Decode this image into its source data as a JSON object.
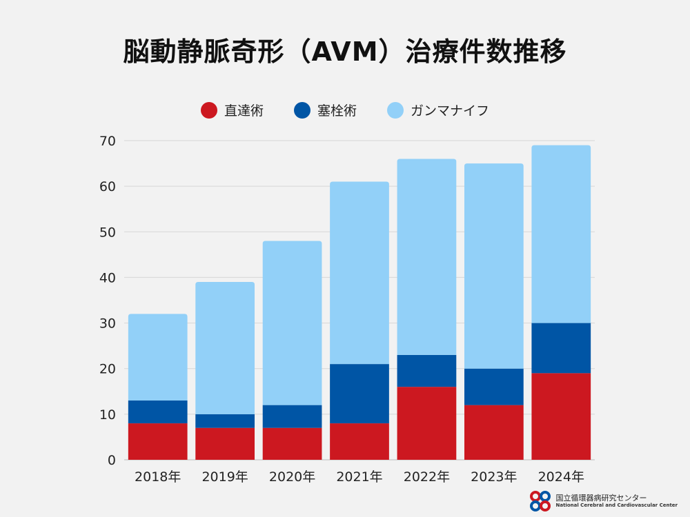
{
  "chart_data": {
    "type": "bar",
    "stacked": true,
    "title": "脳動静脈奇形（AVM）治療件数推移",
    "categories": [
      "2018年",
      "2019年",
      "2020年",
      "2021年",
      "2022年",
      "2023年",
      "2024年"
    ],
    "series": [
      {
        "name": "直達術",
        "color": "#cc1820",
        "values": [
          8,
          7,
          7,
          8,
          16,
          12,
          19
        ]
      },
      {
        "name": "塞栓術",
        "color": "#0055a5",
        "values": [
          5,
          3,
          5,
          13,
          7,
          8,
          11
        ]
      },
      {
        "name": "ガンマナイフ",
        "color": "#92d0f8",
        "values": [
          19,
          29,
          36,
          40,
          43,
          45,
          39
        ]
      }
    ],
    "yticks": [
      0,
      10,
      20,
      30,
      40,
      50,
      60,
      70
    ],
    "ylim": [
      0,
      70
    ],
    "grid": true,
    "legend_position": "top-center"
  },
  "logo": {
    "name_jp": "国立循環器病研究センター",
    "name_en": "National Cerebral and Cardiovascular Center"
  }
}
